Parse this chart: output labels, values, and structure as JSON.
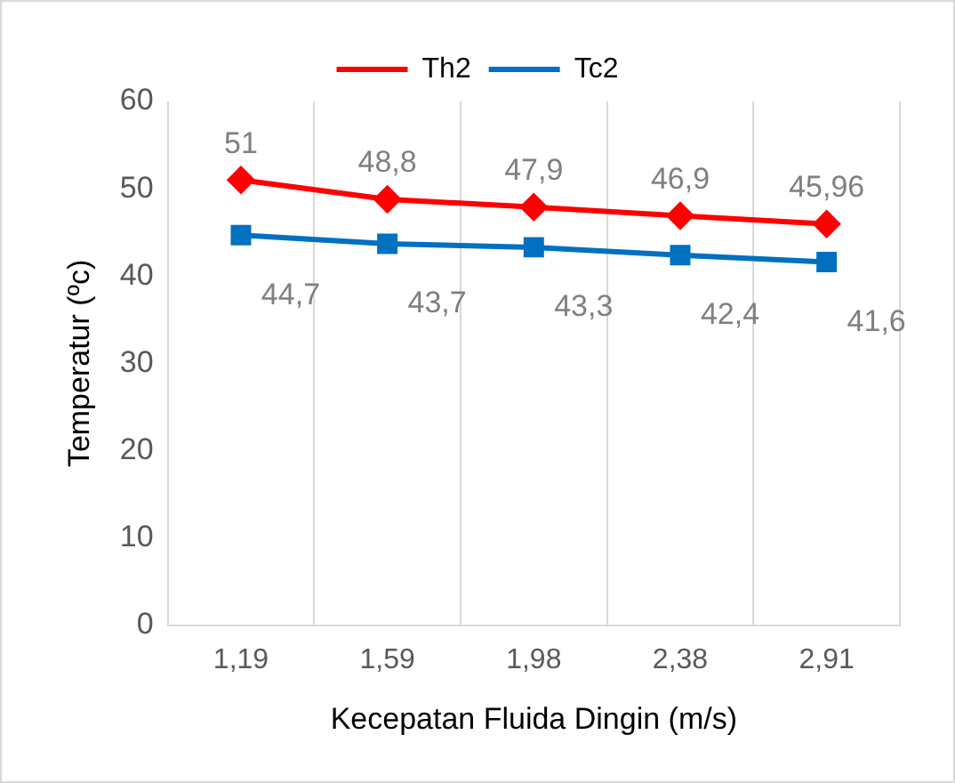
{
  "chart_data": {
    "type": "line",
    "xlabel": "Kecepatan Fluida Dingin (m/s)",
    "ylabel": "Temperatur (ºc)",
    "categories": [
      "1,19",
      "1,59",
      "1,98",
      "2,38",
      "2,91"
    ],
    "series": [
      {
        "name": "Th2",
        "color": "#ff0000",
        "marker": "diamond",
        "values": [
          51,
          48.8,
          47.9,
          46.9,
          45.96
        ],
        "value_labels": [
          "51",
          "48,8",
          "47,9",
          "46,9",
          "45,96"
        ]
      },
      {
        "name": "Tc2",
        "color": "#0070c0",
        "marker": "square",
        "values": [
          44.7,
          43.7,
          43.3,
          42.4,
          41.6
        ],
        "value_labels": [
          "44,7",
          "43,7",
          "43,3",
          "42,4",
          "41,6"
        ]
      }
    ],
    "ylim": [
      0,
      60
    ],
    "yticks": [
      0,
      10,
      20,
      30,
      40,
      50,
      60
    ],
    "grid": "x",
    "legend": "top",
    "line_style": "solid"
  }
}
